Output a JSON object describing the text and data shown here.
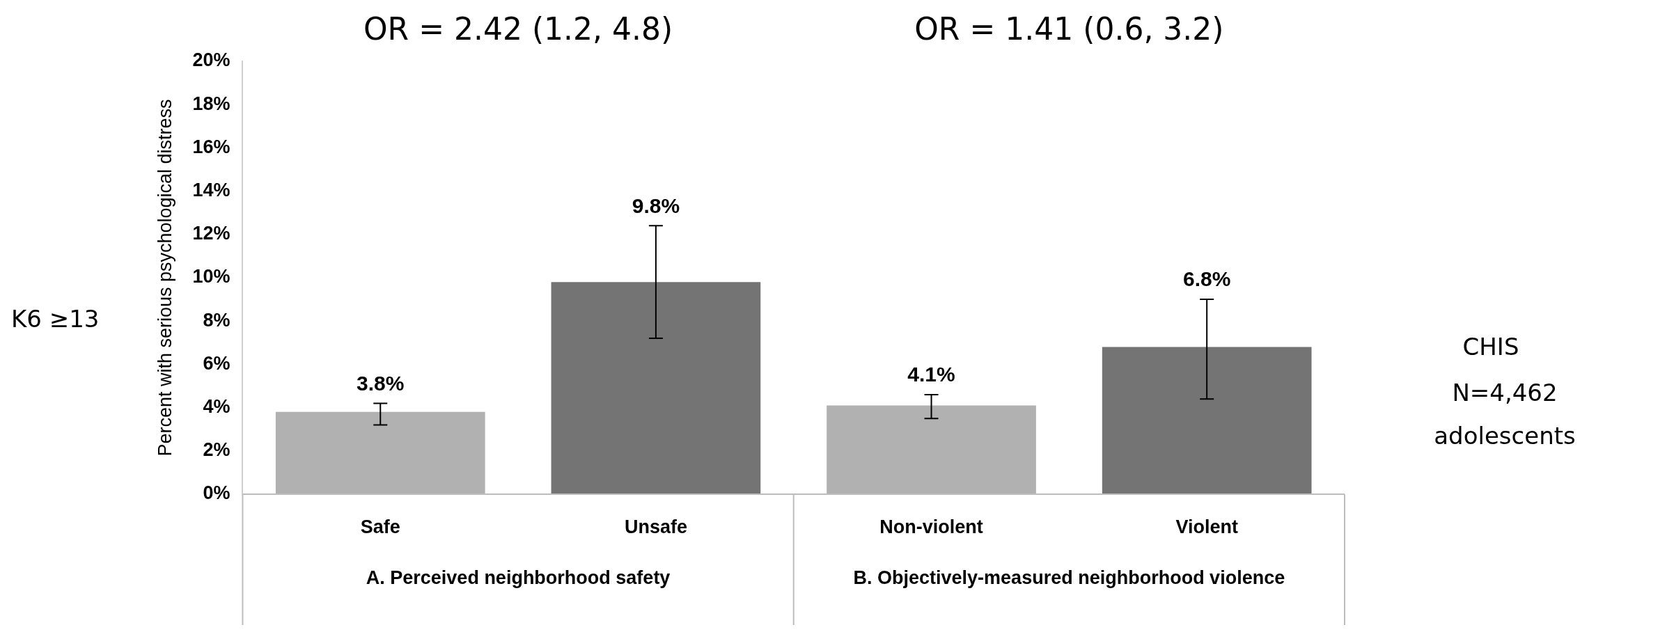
{
  "chart_data": {
    "type": "bar",
    "ylabel": "Percent with serious psychological distress",
    "categories": [
      "Safe",
      "Unsafe",
      "Non-violent",
      "Violent"
    ],
    "values": [
      3.8,
      9.8,
      4.1,
      6.8
    ],
    "colors": [
      "#b1b1b2",
      "#747475",
      "#b1b1b2",
      "#747475"
    ],
    "errors": [
      [
        3.2,
        4.2
      ],
      [
        7.2,
        12.4
      ],
      [
        3.5,
        4.6
      ],
      [
        4.4,
        9.0
      ]
    ],
    "value_labels": [
      "3.8%",
      "9.8%",
      "4.1%",
      "6.8%"
    ],
    "ylim": [
      0,
      20
    ],
    "yticks": [
      {
        "value": 0,
        "label": "0%"
      },
      {
        "value": 2,
        "label": "2%"
      },
      {
        "value": 4,
        "label": "4%"
      },
      {
        "value": 6,
        "label": "6%"
      },
      {
        "value": 8,
        "label": "8%"
      },
      {
        "value": 10,
        "label": "10%"
      },
      {
        "value": 12,
        "label": "12%"
      },
      {
        "value": 14,
        "label": "14%"
      },
      {
        "value": 16,
        "label": "16%"
      },
      {
        "value": 18,
        "label": "18%"
      },
      {
        "value": 20,
        "label": "20%"
      }
    ],
    "grid": false,
    "legend": false,
    "annotations": [
      "OR = 2.42 (1.2, 4.8)",
      "OR = 1.41 (0.6, 3.2)",
      "A. Perceived neighborhood safety",
      "B. Objectively-measured neighborhood violence",
      "K6 ≥13",
      "CHIS",
      "N=4,462 adolescents"
    ]
  }
}
